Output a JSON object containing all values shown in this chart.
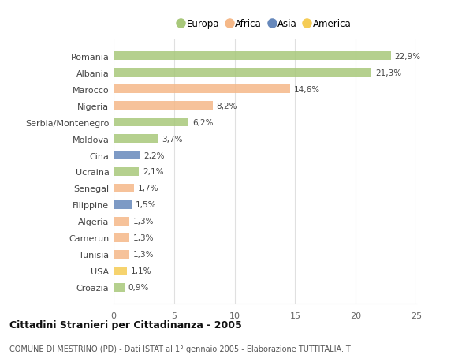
{
  "countries": [
    "Romania",
    "Albania",
    "Marocco",
    "Nigeria",
    "Serbia/Montenegro",
    "Moldova",
    "Cina",
    "Ucraina",
    "Senegal",
    "Filippine",
    "Algeria",
    "Camerun",
    "Tunisia",
    "USA",
    "Croazia"
  ],
  "values": [
    22.9,
    21.3,
    14.6,
    8.2,
    6.2,
    3.7,
    2.2,
    2.1,
    1.7,
    1.5,
    1.3,
    1.3,
    1.3,
    1.1,
    0.9
  ],
  "labels": [
    "22,9%",
    "21,3%",
    "14,6%",
    "8,2%",
    "6,2%",
    "3,7%",
    "2,2%",
    "2,1%",
    "1,7%",
    "1,5%",
    "1,3%",
    "1,3%",
    "1,3%",
    "1,1%",
    "0,9%"
  ],
  "continents": [
    "Europa",
    "Europa",
    "Africa",
    "Africa",
    "Europa",
    "Europa",
    "Asia",
    "Europa",
    "Africa",
    "Asia",
    "Africa",
    "Africa",
    "Africa",
    "America",
    "Europa"
  ],
  "colors": {
    "Europa": "#a8c87a",
    "Africa": "#f5b888",
    "Asia": "#6688bb",
    "America": "#f5cc55"
  },
  "legend_order": [
    "Europa",
    "Africa",
    "Asia",
    "America"
  ],
  "title": "Cittadini Stranieri per Cittadinanza - 2005",
  "subtitle": "COMUNE DI MESTRINO (PD) - Dati ISTAT al 1° gennaio 2005 - Elaborazione TUTTITALIA.IT",
  "xlim": [
    0,
    25
  ],
  "xticks": [
    0,
    5,
    10,
    15,
    20,
    25
  ],
  "bg_color": "#ffffff",
  "grid_color": "#e0e0e0",
  "bar_height": 0.55
}
